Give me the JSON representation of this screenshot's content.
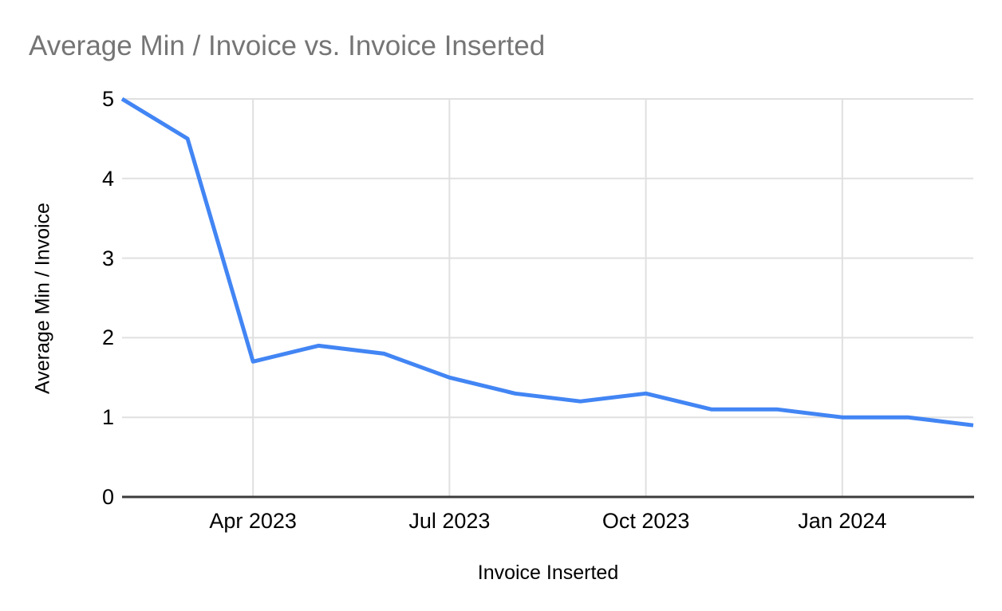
{
  "colors": {
    "line": "#4285f4",
    "grid": "#e0e0e0",
    "baseline": "#3c3c3c",
    "title_text": "#757575",
    "tick_text": "#000000"
  },
  "chart_data": {
    "type": "line",
    "title": "Average Min / Invoice vs. Invoice Inserted",
    "xlabel": "Invoice Inserted",
    "ylabel": "Average Min / Invoice",
    "x": [
      "Feb 2023",
      "Mar 2023",
      "Apr 2023",
      "May 2023",
      "Jun 2023",
      "Jul 2023",
      "Aug 2023",
      "Sep 2023",
      "Oct 2023",
      "Nov 2023",
      "Dec 2023",
      "Jan 2024",
      "Feb 2024",
      "Mar 2024"
    ],
    "series": [
      {
        "name": "Average Min / Invoice",
        "values": [
          5.0,
          4.5,
          1.7,
          1.9,
          1.8,
          1.5,
          1.3,
          1.2,
          1.3,
          1.1,
          1.1,
          1.0,
          1.0,
          0.9
        ]
      }
    ],
    "x_tick_labels": [
      "Apr 2023",
      "Jul 2023",
      "Oct 2023",
      "Jan 2024"
    ],
    "x_tick_indices": [
      2,
      5,
      8,
      11
    ],
    "y_ticks": [
      0,
      1,
      2,
      3,
      4,
      5
    ],
    "ylim": [
      0,
      5
    ],
    "grid": true,
    "legend": "none"
  }
}
